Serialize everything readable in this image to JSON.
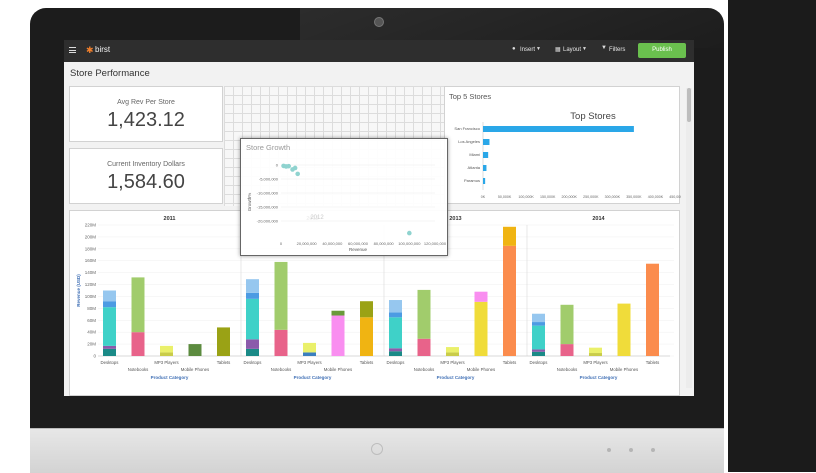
{
  "app": {
    "logo": "birst"
  },
  "toolbar": {
    "insert": "Insert",
    "layout": "Layout",
    "filters": "Filters",
    "publish": "Publish"
  },
  "dashboard": {
    "title": "Store Performance"
  },
  "kpis": [
    {
      "label": "Avg Rev Per Store",
      "value": "1,423.12"
    },
    {
      "label": "Current Inventory Dollars",
      "value": "1,584.60"
    }
  ],
  "colors": {
    "accent": "#6ac04e",
    "topbar": "#2e2e2e",
    "bar_blue": "#2aa7e8"
  },
  "chart_data": [
    {
      "type": "bar",
      "orientation": "horizontal",
      "panel_title": "Top 5 Stores",
      "title": "Top Stores",
      "categories": [
        "San Francisco",
        "Los Angeles",
        "Miami",
        "Atlanta",
        "Paramus"
      ],
      "values": [
        350000,
        15000,
        12000,
        8000,
        5000
      ],
      "xlim": [
        0,
        450000
      ],
      "x_ticks": [
        "0K",
        "50,000K",
        "100,000K",
        "150,000K",
        "200,000K",
        "250,000K",
        "300,000K",
        "350,000K",
        "400,000K",
        "450,000K"
      ]
    },
    {
      "type": "scatter",
      "panel_title": "Store Growth",
      "watermark": "2012",
      "xlabel": "Revenue",
      "ylabel": "Growth%",
      "x_ticks": [
        "0",
        "20,000,000",
        "40,000,000",
        "60,000,000",
        "80,000,000",
        "100,000,000",
        "120,000,000"
      ],
      "y_ticks": [
        "0",
        "-5,000,000",
        "-10,000,000",
        "-15,000,000",
        "-20,000,000"
      ],
      "xlim": [
        0,
        120000000
      ],
      "ylim": [
        -25000000,
        0
      ],
      "points": [
        {
          "x": 2000000,
          "y": -300000
        },
        {
          "x": 4000000,
          "y": -500000
        },
        {
          "x": 6000000,
          "y": -400000
        },
        {
          "x": 9000000,
          "y": -1500000
        },
        {
          "x": 11000000,
          "y": -1000000
        },
        {
          "x": 13000000,
          "y": -3000000
        },
        {
          "x": 100000000,
          "y": -23000000
        }
      ]
    },
    {
      "type": "bar",
      "stacked": true,
      "ylabel": "Revenue (USD)",
      "xlabel": "Product Category",
      "ylim": [
        0,
        220000000
      ],
      "y_ticks": [
        "0",
        "20M",
        "40M",
        "60M",
        "80M",
        "100M",
        "120M",
        "140M",
        "160M",
        "180M",
        "200M",
        "220M"
      ],
      "categories": [
        "Desktops",
        "Notebooks",
        "MP3 Players",
        "Mobile Phones",
        "Tablets"
      ],
      "years": [
        {
          "year": "2011",
          "bars": [
            {
              "category": "Desktops",
              "segments": [
                {
                  "value": 12,
                  "color": "#1a8a87"
                },
                {
                  "value": 5,
                  "color": "#8b5bab"
                },
                {
                  "value": 65,
                  "color": "#3fd1c8"
                },
                {
                  "value": 10,
                  "color": "#4c9be3"
                },
                {
                  "value": 18,
                  "color": "#96c7ef"
                }
              ]
            },
            {
              "category": "Notebooks",
              "segments": [
                {
                  "value": 40,
                  "color": "#e8638a"
                },
                {
                  "value": 92,
                  "color": "#a1cc6c"
                }
              ]
            },
            {
              "category": "MP3 Players",
              "segments": [
                {
                  "value": 6,
                  "color": "#c9cc4a"
                },
                {
                  "value": 11,
                  "color": "#eaf06a"
                }
              ]
            },
            {
              "category": "Mobile Phones",
              "segments": [
                {
                  "value": 20,
                  "color": "#5c8b3f"
                }
              ]
            },
            {
              "category": "Tablets",
              "segments": [
                {
                  "value": 48,
                  "color": "#9aa215"
                }
              ]
            }
          ]
        },
        {
          "year": "2012",
          "bars": [
            {
              "category": "Desktops",
              "segments": [
                {
                  "value": 12,
                  "color": "#1a8a87"
                },
                {
                  "value": 16,
                  "color": "#8b5bab"
                },
                {
                  "value": 68,
                  "color": "#3fd1c8"
                },
                {
                  "value": 10,
                  "color": "#4c9be3"
                },
                {
                  "value": 23,
                  "color": "#96c7ef"
                }
              ]
            },
            {
              "category": "Notebooks",
              "segments": [
                {
                  "value": 44,
                  "color": "#e8638a"
                },
                {
                  "value": 114,
                  "color": "#a1cc6c"
                }
              ]
            },
            {
              "category": "MP3 Players",
              "segments": [
                {
                  "value": 6,
                  "color": "#3b7fbf"
                },
                {
                  "value": 16,
                  "color": "#eaf06a"
                }
              ]
            },
            {
              "category": "Mobile Phones",
              "segments": [
                {
                  "value": 68,
                  "color": "#f98ef0"
                },
                {
                  "value": 8,
                  "color": "#6a9a3a"
                }
              ]
            },
            {
              "category": "Tablets",
              "segments": [
                {
                  "value": 65,
                  "color": "#f0b412"
                },
                {
                  "value": 27,
                  "color": "#9aa215"
                }
              ]
            }
          ]
        },
        {
          "year": "2013",
          "bars": [
            {
              "category": "Desktops",
              "segments": [
                {
                  "value": 8,
                  "color": "#1a8a87"
                },
                {
                  "value": 5,
                  "color": "#8b5bab"
                },
                {
                  "value": 52,
                  "color": "#3fd1c8"
                },
                {
                  "value": 8,
                  "color": "#4c9be3"
                },
                {
                  "value": 21,
                  "color": "#96c7ef"
                }
              ]
            },
            {
              "category": "Notebooks",
              "segments": [
                {
                  "value": 29,
                  "color": "#e8638a"
                },
                {
                  "value": 82,
                  "color": "#a1cc6c"
                }
              ]
            },
            {
              "category": "MP3 Players",
              "segments": [
                {
                  "value": 6,
                  "color": "#c9cc4a"
                },
                {
                  "value": 9,
                  "color": "#eaf06a"
                }
              ]
            },
            {
              "category": "Mobile Phones",
              "segments": [
                {
                  "value": 91,
                  "color": "#f0dc3a"
                },
                {
                  "value": 17,
                  "color": "#f98ef0"
                }
              ]
            },
            {
              "category": "Tablets",
              "segments": [
                {
                  "value": 185,
                  "color": "#fb8c4d"
                },
                {
                  "value": 32,
                  "color": "#f0b412"
                }
              ]
            }
          ]
        },
        {
          "year": "2014",
          "bars": [
            {
              "category": "Desktops",
              "segments": [
                {
                  "value": 7,
                  "color": "#1a8a87"
                },
                {
                  "value": 4,
                  "color": "#8b5bab"
                },
                {
                  "value": 40,
                  "color": "#3fd1c8"
                },
                {
                  "value": 6,
                  "color": "#4c9be3"
                },
                {
                  "value": 14,
                  "color": "#96c7ef"
                }
              ]
            },
            {
              "category": "Notebooks",
              "segments": [
                {
                  "value": 20,
                  "color": "#e8638a"
                },
                {
                  "value": 66,
                  "color": "#a1cc6c"
                }
              ]
            },
            {
              "category": "MP3 Players",
              "segments": [
                {
                  "value": 5,
                  "color": "#c9cc4a"
                },
                {
                  "value": 9,
                  "color": "#eaf06a"
                }
              ]
            },
            {
              "category": "Mobile Phones",
              "segments": [
                {
                  "value": 88,
                  "color": "#f0dc3a"
                }
              ]
            },
            {
              "category": "Tablets",
              "segments": [
                {
                  "value": 155,
                  "color": "#fb8c4d"
                }
              ]
            }
          ]
        }
      ]
    }
  ]
}
